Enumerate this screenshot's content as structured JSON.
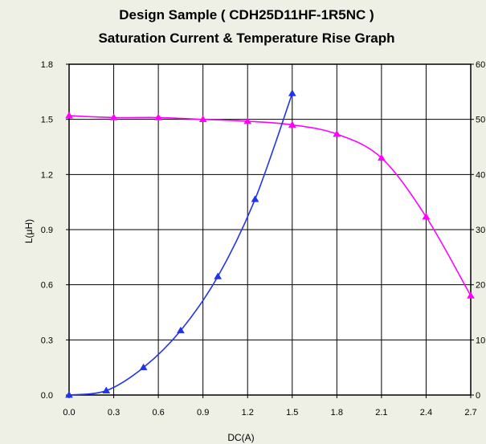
{
  "chart_data": {
    "type": "line",
    "title": "Design Sample ( CDH25D11HF-1R5NC )",
    "subtitle": "Saturation Current & Temperature Rise  Graph",
    "xlabel": "DC(A)",
    "ylabel": "L(μH)",
    "xlim": [
      0,
      2.7
    ],
    "ylim": [
      0,
      1.8
    ],
    "y2lim": [
      0,
      60
    ],
    "x_ticks": [
      "0.0",
      "0.3",
      "0.6",
      "0.9",
      "1.2",
      "1.5",
      "1.8",
      "2.1",
      "2.4",
      "2.7"
    ],
    "y_ticks": [
      "0.0",
      "0.3",
      "0.6",
      "0.9",
      "1.2",
      "1.5",
      "1.8"
    ],
    "y2_ticks": [
      "0",
      "10",
      "20",
      "30",
      "40",
      "50",
      "60"
    ],
    "grid": true,
    "series": [
      {
        "color": "#ff00ff",
        "axis": "left",
        "marker": "triangle",
        "x": [
          0.0,
          0.3,
          0.6,
          0.9,
          1.2,
          1.5,
          1.8,
          2.1,
          2.4,
          2.7
        ],
        "y": [
          1.52,
          1.51,
          1.51,
          1.5,
          1.49,
          1.47,
          1.42,
          1.29,
          0.97,
          0.54
        ]
      },
      {
        "color": "#2233ee",
        "axis": "right",
        "marker": "triangle",
        "x": [
          0.0,
          0.25,
          0.5,
          0.75,
          1.0,
          1.25,
          1.5
        ],
        "y": [
          0,
          0.8,
          5,
          11.7,
          21.5,
          35.5,
          54.7
        ]
      }
    ]
  }
}
